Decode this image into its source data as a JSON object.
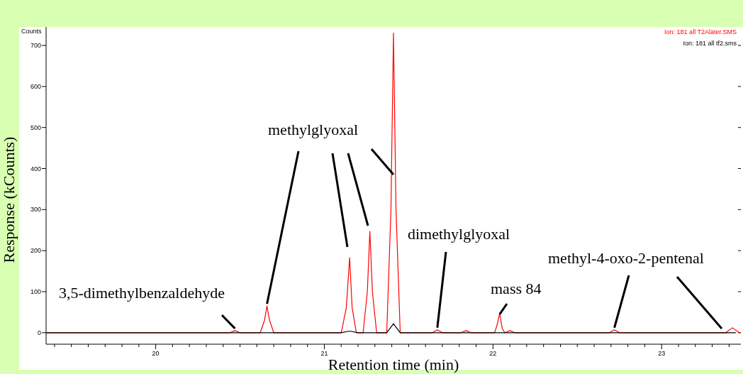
{
  "chart_data": {
    "type": "line",
    "xlabel": "Retention time (min)",
    "ylabel": "Response (kCounts)",
    "xlim": [
      19.35,
      23.47
    ],
    "ylim": [
      -28,
      745
    ],
    "xticks": [
      {
        "value": 19.4,
        "label": null
      },
      {
        "value": 19.5,
        "label": null
      },
      {
        "value": 19.6,
        "label": null
      },
      {
        "value": 19.7,
        "label": null
      },
      {
        "value": 19.8,
        "label": null
      },
      {
        "value": 19.9,
        "label": null
      },
      20,
      {
        "value": 20.1,
        "label": null
      },
      {
        "value": 20.2,
        "label": null
      },
      {
        "value": 20.3,
        "label": null
      },
      {
        "value": 20.4,
        "label": null
      },
      {
        "value": 20.5,
        "label": null
      },
      {
        "value": 20.6,
        "label": null
      },
      {
        "value": 20.7,
        "label": null
      },
      {
        "value": 20.8,
        "label": null
      },
      {
        "value": 20.9,
        "label": null
      },
      21,
      {
        "value": 21.1,
        "label": null
      },
      {
        "value": 21.2,
        "label": null
      },
      {
        "value": 21.3,
        "label": null
      },
      {
        "value": 21.4,
        "label": null
      },
      {
        "value": 21.5,
        "label": null
      },
      {
        "value": 21.6,
        "label": null
      },
      {
        "value": 21.7,
        "label": null
      },
      {
        "value": 21.8,
        "label": null
      },
      {
        "value": 21.9,
        "label": null
      },
      22,
      {
        "value": 22.1,
        "label": null
      },
      {
        "value": 22.2,
        "label": null
      },
      {
        "value": 22.3,
        "label": null
      },
      {
        "value": 22.4,
        "label": null
      },
      {
        "value": 22.5,
        "label": null
      },
      {
        "value": 22.6,
        "label": null
      },
      {
        "value": 22.7,
        "label": null
      },
      {
        "value": 22.8,
        "label": null
      },
      {
        "value": 22.9,
        "label": null
      },
      23,
      {
        "value": 23.1,
        "label": null
      },
      {
        "value": 23.2,
        "label": null
      },
      {
        "value": 23.3,
        "label": null
      },
      {
        "value": 23.4,
        "label": null
      }
    ],
    "yticks": [
      0,
      100,
      200,
      300,
      400,
      500,
      600,
      700
    ],
    "legend": "top right",
    "grid": false,
    "marker": "none",
    "line_style": "solid",
    "series": [
      {
        "name": "Ion: 181 all T2Alater.SMS",
        "color": "#ff0000",
        "x": [
          19.35,
          20.4,
          20.44,
          20.47,
          20.5,
          20.62,
          20.645,
          20.66,
          20.675,
          20.7,
          21.1,
          21.13,
          21.15,
          21.165,
          21.19,
          21.23,
          21.255,
          21.27,
          21.285,
          21.31,
          21.37,
          21.395,
          21.41,
          21.425,
          21.45,
          21.64,
          21.67,
          21.7,
          21.81,
          21.84,
          21.87,
          22.01,
          22.025,
          22.04,
          22.055,
          22.07,
          22.1,
          22.13,
          22.69,
          22.72,
          22.75,
          23.38,
          23.42,
          23.46,
          23.47
        ],
        "values": [
          0,
          0,
          0,
          5,
          0,
          0,
          30,
          65,
          30,
          0,
          0,
          60,
          183,
          60,
          0,
          0,
          100,
          247,
          100,
          0,
          0,
          300,
          730,
          300,
          0,
          0,
          7,
          0,
          0,
          5,
          0,
          0,
          20,
          47,
          10,
          0,
          5,
          0,
          0,
          7,
          0,
          0,
          12,
          0,
          0
        ]
      },
      {
        "name": "Ion: 181 all tf2.sms",
        "color": "#000000",
        "x": [
          19.35,
          21.1,
          21.15,
          21.2,
          21.37,
          21.41,
          21.45,
          23.44
        ],
        "values": [
          0,
          0,
          4,
          0,
          0,
          22,
          0,
          0
        ]
      }
    ],
    "annotations": [
      {
        "text": "3,5-dimethylbenzaldehyde",
        "x": 20.47,
        "y": 5
      },
      {
        "text": "methylglyoxal",
        "x": 20.66,
        "y": 65
      },
      {
        "text": "dimethylglyoxal",
        "x": 21.67,
        "y": 7
      },
      {
        "text": "mass 84",
        "x": 22.04,
        "y": 40
      },
      {
        "text": "methyl-4-oxo-2-pentenal",
        "x": 22.72,
        "y": 7
      },
      {
        "text": "Counts"
      }
    ]
  }
}
